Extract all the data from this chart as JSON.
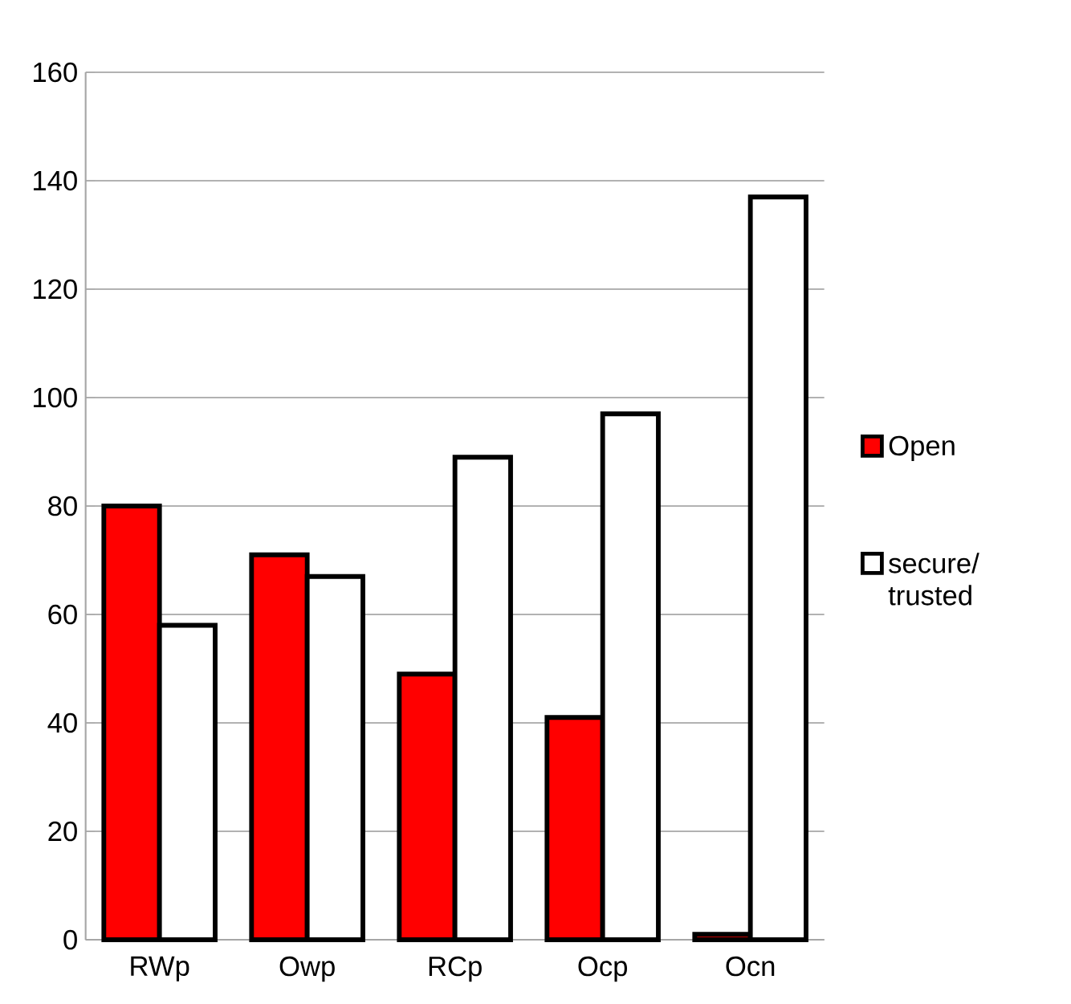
{
  "chart_data": {
    "type": "bar",
    "categories": [
      "RWp",
      "Owp",
      "RCp",
      "Ocp",
      "Ocn"
    ],
    "series": [
      {
        "name": "Open",
        "color": "#ff0000",
        "values": [
          80,
          71,
          49,
          41,
          1
        ]
      },
      {
        "name": "secure/ trusted",
        "color": "#ffffff",
        "values": [
          58,
          67,
          89,
          97,
          137
        ]
      }
    ],
    "ylim": [
      0,
      160
    ],
    "yticks": [
      0,
      20,
      40,
      60,
      80,
      100,
      120,
      140,
      160
    ],
    "grid": "y",
    "legend": "right"
  }
}
